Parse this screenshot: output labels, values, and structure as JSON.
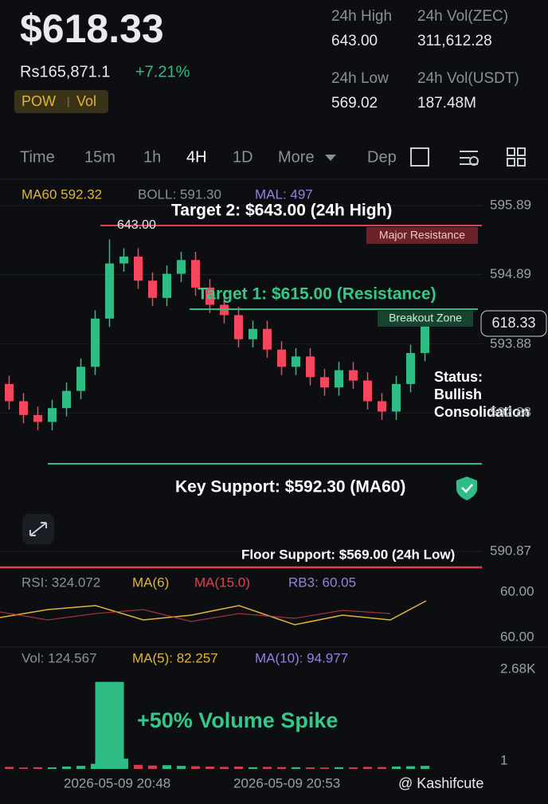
{
  "header": {
    "price": "$618.33",
    "fiat_price": "Rs165,871.1",
    "change": "+7.21%",
    "tags": [
      "POW",
      "Vol"
    ]
  },
  "stats": [
    {
      "label": "24h High",
      "value": "643.00"
    },
    {
      "label": "24h Vol(ZEC)",
      "value": "311,612.28"
    },
    {
      "label": "24h Low",
      "value": "569.02"
    },
    {
      "label": "24h Vol(USDT)",
      "value": "187.48M"
    }
  ],
  "tabs": [
    "Time",
    "15m",
    "1h",
    "4H",
    "1D",
    "More",
    "Dep"
  ],
  "indicators": {
    "ma60": "MA60 592.32",
    "boll": "BOLL: 591.30",
    "ma": "MAL: 497"
  },
  "annotations": {
    "target2": "Target 2: $643.00 (24h High)",
    "high_marker": "643.00",
    "major_resistance": "Major Resistance",
    "target1": "Target 1: $615.00 (Resistance)",
    "breakout_zone": "Breakout Zone",
    "price_tag": "618.33",
    "status": [
      "Status:",
      "Bullish",
      "Consolidation"
    ],
    "key_support": "Key Support: $592.30 (MA60)",
    "floor_support": "Floor Support: $569.00 (24h Low)",
    "volume_spike": "+50% Volume Spike"
  },
  "rsi": {
    "value": "RSI: 324.072",
    "ma_short": "MA(6)",
    "ma_long": "MA(15.0)",
    "rb": "RB3: 60.05",
    "ticks": [
      "60.00",
      "60.00"
    ]
  },
  "volume_legend": {
    "vol": "Vol: 124.567",
    "ma5": "MA(5): 82.257",
    "ma10": "MA(10): 94.977"
  },
  "time_labels": [
    "2026-05-09 20:48",
    "2026-05-09 20:53"
  ],
  "watermark": "@ Kashifcute",
  "chart_data": [
    {
      "type": "candlestick",
      "up_color": "#2ebd85",
      "down_color": "#f6465d",
      "open": [
        593.3,
        593.05,
        592.85,
        592.75,
        592.95,
        593.2,
        593.55,
        594.25,
        595.05,
        595.15,
        594.8,
        594.55,
        594.9,
        595.1,
        594.7,
        594.45,
        594.3,
        593.95,
        594.1,
        593.8,
        593.55,
        593.7,
        593.4,
        593.25,
        593.5,
        593.35,
        593.05,
        592.9,
        593.3,
        593.75
      ],
      "high": [
        593.42,
        593.17,
        592.97,
        593.07,
        593.32,
        593.67,
        594.37,
        595.4,
        595.27,
        595.27,
        594.92,
        595.02,
        595.22,
        595.22,
        594.82,
        594.57,
        594.42,
        594.22,
        594.22,
        593.92,
        593.82,
        593.82,
        593.52,
        593.62,
        593.62,
        593.47,
        593.17,
        593.42,
        593.87,
        594.32
      ],
      "low": [
        592.93,
        592.73,
        592.63,
        592.63,
        592.83,
        593.08,
        593.43,
        594.13,
        594.93,
        594.68,
        594.43,
        594.43,
        594.78,
        594.58,
        594.33,
        594.18,
        593.83,
        593.83,
        593.68,
        593.43,
        593.43,
        593.28,
        593.13,
        593.13,
        593.23,
        592.93,
        592.78,
        592.78,
        593.18,
        593.63
      ],
      "close": [
        593.05,
        592.85,
        592.75,
        592.95,
        593.2,
        593.55,
        594.25,
        595.05,
        595.15,
        594.8,
        594.55,
        594.9,
        595.1,
        594.7,
        594.45,
        594.3,
        593.95,
        594.1,
        593.8,
        593.55,
        593.7,
        593.4,
        593.25,
        593.5,
        593.35,
        593.05,
        592.9,
        593.3,
        593.75,
        594.2
      ],
      "ylim": [
        590.87,
        595.89
      ],
      "yticks": [
        595.89,
        594.89,
        593.88,
        592.88,
        590.87
      ]
    },
    {
      "type": "bar",
      "color": "#2ebd85",
      "values": [
        60,
        40,
        50,
        45,
        70,
        90,
        150,
        2550,
        300,
        120,
        100,
        110,
        90,
        80,
        70,
        60,
        70,
        50,
        60,
        55,
        50,
        45,
        40,
        50,
        45,
        60,
        55,
        70,
        80,
        90
      ],
      "ylim": [
        0,
        2800
      ],
      "yticks": [
        {
          "value": 2680,
          "label": "2.68K"
        },
        1
      ]
    }
  ]
}
